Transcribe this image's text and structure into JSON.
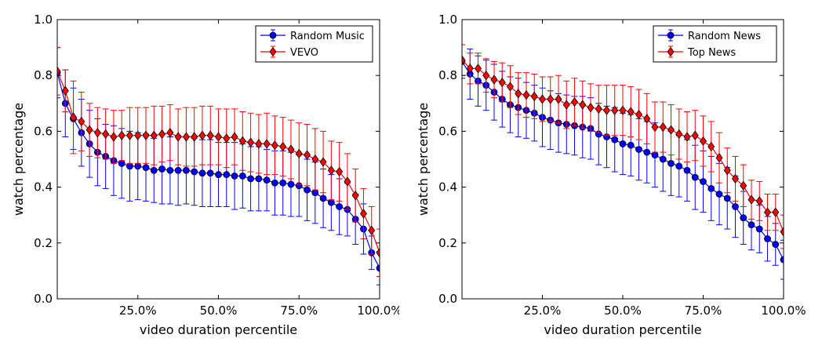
{
  "chart_data": [
    {
      "type": "line",
      "xlabel": "video duration percentile",
      "ylabel": "watch percentage",
      "xlim": [
        0,
        100
      ],
      "ylim": [
        0.0,
        1.0
      ],
      "xticks": [
        25,
        50,
        75,
        100
      ],
      "xtick_labels": [
        "25.0%",
        "50.0%",
        "75.0%",
        "100.0%"
      ],
      "yticks": [
        0.0,
        0.2,
        0.4,
        0.6,
        0.8,
        1.0
      ],
      "ytick_labels": [
        "0.0",
        "0.2",
        "0.4",
        "0.6",
        "0.8",
        "1.0"
      ],
      "grid": false,
      "legend": "top-right",
      "x": [
        0,
        2.5,
        5,
        7.5,
        10,
        12.5,
        15,
        17.5,
        20,
        22.5,
        25,
        27.5,
        30,
        32.5,
        35,
        37.5,
        40,
        42.5,
        45,
        47.5,
        50,
        52.5,
        55,
        57.5,
        60,
        62.5,
        65,
        67.5,
        70,
        72.5,
        75,
        77.5,
        80,
        82.5,
        85,
        87.5,
        90,
        92.5,
        95,
        97.5,
        100
      ],
      "series": [
        {
          "name": "Random Music",
          "color": "#0000ff",
          "marker": "circle",
          "values": [
            0.81,
            0.7,
            0.645,
            0.595,
            0.555,
            0.525,
            0.51,
            0.495,
            0.485,
            0.475,
            0.475,
            0.47,
            0.46,
            0.465,
            0.46,
            0.46,
            0.46,
            0.455,
            0.45,
            0.45,
            0.445,
            0.445,
            0.44,
            0.44,
            0.43,
            0.43,
            0.425,
            0.415,
            0.415,
            0.41,
            0.405,
            0.39,
            0.38,
            0.36,
            0.345,
            0.33,
            0.32,
            0.285,
            0.25,
            0.165,
            0.11
          ],
          "errors": [
            0.09,
            0.12,
            0.11,
            0.12,
            0.12,
            0.12,
            0.115,
            0.125,
            0.125,
            0.125,
            0.12,
            0.12,
            0.115,
            0.125,
            0.12,
            0.125,
            0.12,
            0.12,
            0.12,
            0.12,
            0.115,
            0.115,
            0.12,
            0.115,
            0.115,
            0.115,
            0.11,
            0.115,
            0.115,
            0.115,
            0.11,
            0.11,
            0.11,
            0.105,
            0.1,
            0.1,
            0.095,
            0.09,
            0.09,
            0.06,
            0.06
          ]
        },
        {
          "name": "VEVO",
          "color": "#ff0000",
          "marker": "diamond",
          "values": [
            0.815,
            0.745,
            0.65,
            0.635,
            0.605,
            0.595,
            0.59,
            0.58,
            0.585,
            0.585,
            0.585,
            0.585,
            0.585,
            0.59,
            0.595,
            0.58,
            0.58,
            0.58,
            0.585,
            0.585,
            0.58,
            0.575,
            0.58,
            0.565,
            0.56,
            0.555,
            0.555,
            0.55,
            0.545,
            0.535,
            0.52,
            0.515,
            0.5,
            0.49,
            0.46,
            0.455,
            0.42,
            0.37,
            0.305,
            0.245,
            0.165
          ],
          "errors": [
            0.085,
            0.075,
            0.13,
            0.105,
            0.095,
            0.09,
            0.09,
            0.095,
            0.09,
            0.1,
            0.1,
            0.1,
            0.105,
            0.1,
            0.1,
            0.1,
            0.105,
            0.105,
            0.105,
            0.105,
            0.1,
            0.105,
            0.1,
            0.105,
            0.105,
            0.105,
            0.11,
            0.105,
            0.105,
            0.105,
            0.11,
            0.11,
            0.11,
            0.11,
            0.105,
            0.105,
            0.1,
            0.095,
            0.09,
            0.085,
            0.085
          ]
        }
      ]
    },
    {
      "type": "line",
      "xlabel": "video duration percentile",
      "ylabel": "watch percentage",
      "xlim": [
        0,
        100
      ],
      "ylim": [
        0.0,
        1.0
      ],
      "xticks": [
        25,
        50,
        75,
        100
      ],
      "xtick_labels": [
        "25.0%",
        "50.0%",
        "75.0%",
        "100.0%"
      ],
      "yticks": [
        0.0,
        0.2,
        0.4,
        0.6,
        0.8,
        1.0
      ],
      "ytick_labels": [
        "0.0",
        "0.2",
        "0.4",
        "0.6",
        "0.8",
        "1.0"
      ],
      "grid": false,
      "legend": "top-right",
      "x": [
        0,
        2.5,
        5,
        7.5,
        10,
        12.5,
        15,
        17.5,
        20,
        22.5,
        25,
        27.5,
        30,
        32.5,
        35,
        37.5,
        40,
        42.5,
        45,
        47.5,
        50,
        52.5,
        55,
        57.5,
        60,
        62.5,
        65,
        67.5,
        70,
        72.5,
        75,
        77.5,
        80,
        82.5,
        85,
        87.5,
        90,
        92.5,
        95,
        97.5,
        100
      ],
      "series": [
        {
          "name": "Random News",
          "color": "#0000ff",
          "marker": "circle",
          "values": [
            0.85,
            0.805,
            0.78,
            0.765,
            0.74,
            0.715,
            0.695,
            0.685,
            0.675,
            0.665,
            0.65,
            0.64,
            0.63,
            0.625,
            0.62,
            0.615,
            0.61,
            0.59,
            0.58,
            0.57,
            0.555,
            0.55,
            0.535,
            0.525,
            0.515,
            0.5,
            0.485,
            0.475,
            0.46,
            0.435,
            0.42,
            0.395,
            0.375,
            0.36,
            0.33,
            0.29,
            0.265,
            0.25,
            0.215,
            0.195,
            0.14
          ],
          "errors": [
            0.06,
            0.09,
            0.09,
            0.09,
            0.1,
            0.1,
            0.1,
            0.105,
            0.1,
            0.1,
            0.105,
            0.105,
            0.105,
            0.105,
            0.105,
            0.11,
            0.11,
            0.11,
            0.11,
            0.115,
            0.11,
            0.11,
            0.11,
            0.11,
            0.115,
            0.115,
            0.115,
            0.11,
            0.11,
            0.115,
            0.11,
            0.115,
            0.11,
            0.11,
            0.11,
            0.095,
            0.09,
            0.085,
            0.08,
            0.075,
            0.07
          ]
        },
        {
          "name": "Top News",
          "color": "#ff0000",
          "marker": "diamond",
          "values": [
            0.855,
            0.825,
            0.825,
            0.8,
            0.785,
            0.775,
            0.76,
            0.735,
            0.73,
            0.725,
            0.715,
            0.715,
            0.715,
            0.695,
            0.705,
            0.695,
            0.685,
            0.68,
            0.675,
            0.675,
            0.675,
            0.67,
            0.66,
            0.645,
            0.615,
            0.615,
            0.605,
            0.59,
            0.58,
            0.585,
            0.565,
            0.545,
            0.505,
            0.46,
            0.43,
            0.405,
            0.355,
            0.35,
            0.31,
            0.31,
            0.24
          ],
          "errors": [
            0.055,
            0.055,
            0.055,
            0.06,
            0.065,
            0.07,
            0.075,
            0.075,
            0.08,
            0.08,
            0.08,
            0.08,
            0.085,
            0.085,
            0.085,
            0.085,
            0.085,
            0.085,
            0.09,
            0.09,
            0.09,
            0.09,
            0.09,
            0.09,
            0.09,
            0.09,
            0.09,
            0.09,
            0.09,
            0.09,
            0.09,
            0.09,
            0.09,
            0.08,
            0.08,
            0.075,
            0.07,
            0.07,
            0.065,
            0.065,
            0.06
          ]
        }
      ]
    }
  ]
}
